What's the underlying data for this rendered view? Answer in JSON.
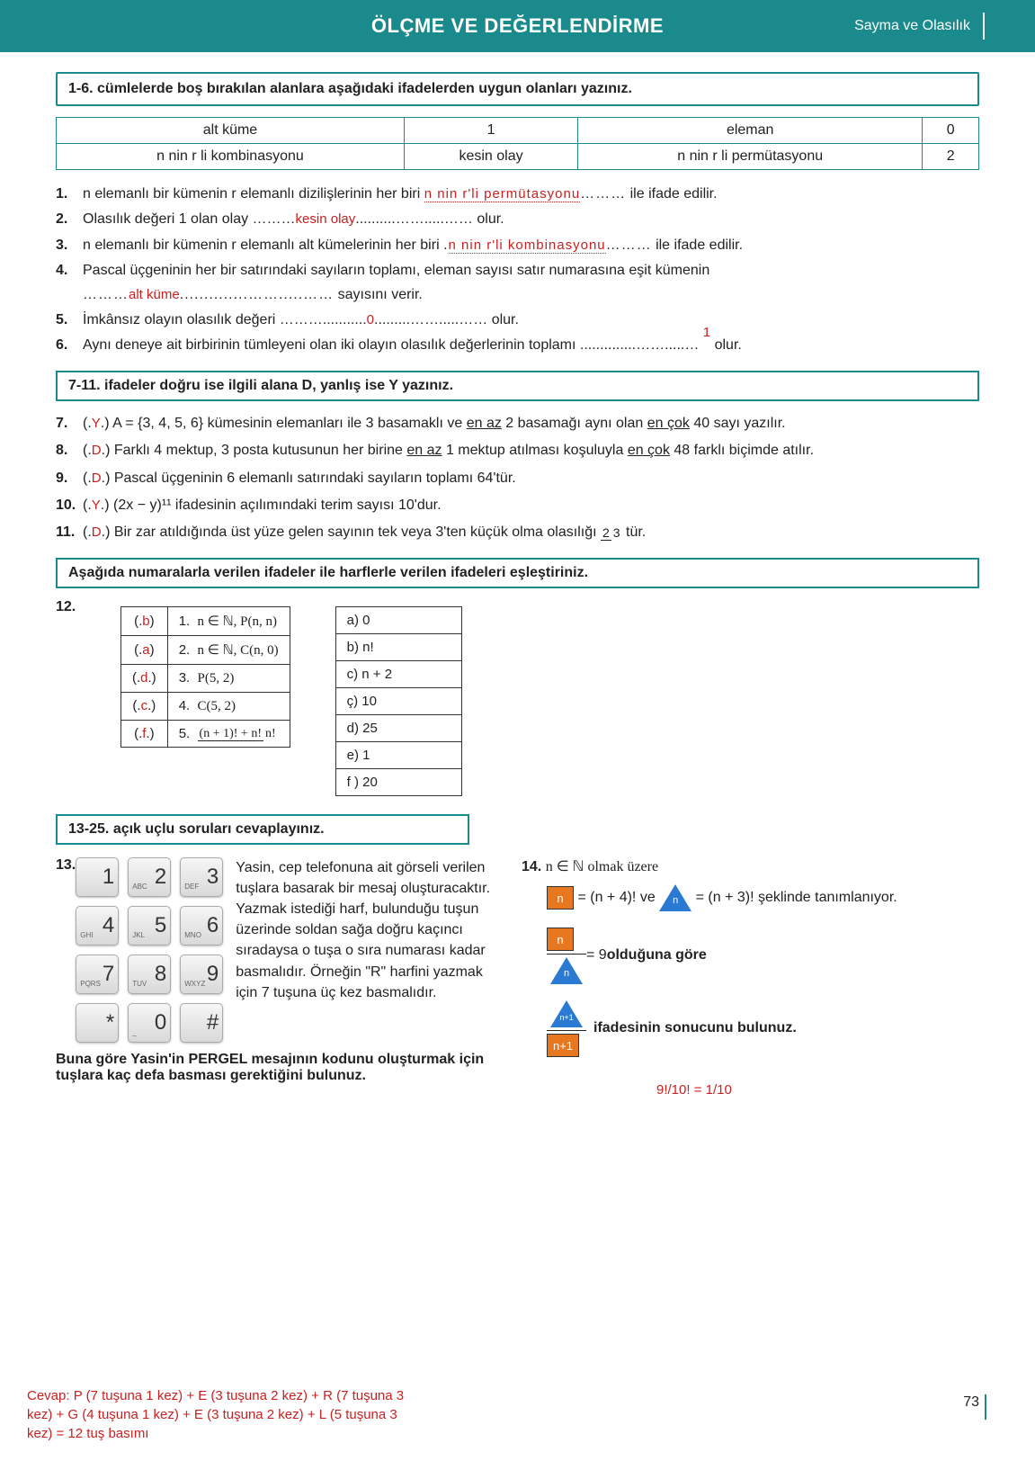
{
  "header": {
    "title": "ÖLÇME VE DEĞERLENDİRME",
    "right": "Sayma ve Olasılık"
  },
  "s1": {
    "instr": "1-6. cümlelerde boş bırakılan alanlara aşağıdaki ifadelerden uygun olanları yazınız.",
    "words": [
      [
        "alt küme",
        "1",
        "eleman",
        "0"
      ],
      [
        "n nin r li kombinasyonu",
        "kesin olay",
        "n nin r li permütasyonu",
        "2"
      ]
    ],
    "q1a": "1.",
    "q1t1": "n elemanlı bir kümenin r elemanlı dizilişlerinin her biri ",
    "q1ans": "n nin r'li permütasyonu",
    "q1t2": " ile ifade edilir.",
    "q2a": "2.",
    "q2t1": "Olasılık değeri 1 olan olay ………",
    "q2ans": "kesin olay",
    "q2t2": "..........…….....…… olur.",
    "q3a": "3.",
    "q3t1": "n elemanlı bir kümenin r elemanlı alt kümelerinin her biri ",
    "q3ans": "n nin r'li kombinasyonu",
    "q3t2": " ile ifade edilir.",
    "q4a": "4.",
    "q4t1": "Pascal üçgeninin her bir satırındaki sayıların toplamı, eleman sayısı satır numarasına eşit kümenin",
    "q4ans": "alt küme",
    "q4t2": " sayısını verir.",
    "q5a": "5.",
    "q5t1": "İmkânsız olayın olasılık değeri ………...........",
    "q5ans": "0",
    "q5t2": ".........…….....…… olur.",
    "q6a": "6.",
    "q6t1": "Aynı deneye ait birbirinin tümleyeni olan iki olayın olasılık değerlerinin toplamı ..............…….....… ",
    "q6ans": "1",
    "q6t2": " olur."
  },
  "s2": {
    "instr": "7-11. ifadeler doğru ise ilgili alana D, yanlış ise Y yazınız.",
    "q7a": "7.",
    "q7ans": "Y",
    "q7t": ") A = {3, 4, 5, 6} kümesinin elemanları ile 3 basamaklı ve ",
    "q7u1": "en az",
    "q7m": " 2 basamağı aynı olan ",
    "q7u2": "en çok",
    "q7e": " 40 sayı yazılır.",
    "q8a": "8.",
    "q8ans": "D",
    "q8t": ") Farklı 4 mektup, 3 posta kutusunun her birine ",
    "q8u1": "en az",
    "q8m": " 1 mektup atılması koşuluyla ",
    "q8u2": "en çok",
    "q8e": " 48 farklı biçimde atılır.",
    "q9a": "9.",
    "q9ans": "D",
    "q9t": ") Pascal üçgeninin 6 elemanlı satırındaki sayıların toplamı 64'tür.",
    "q10a": "10.",
    "q10ans": "Y",
    "q10t": ") (2x − y)¹¹ ifadesinin açılımındaki terim sayısı 10'dur.",
    "q11a": "11.",
    "q11ans": "D",
    "q11t": ") Bir zar atıldığında üst yüze gelen sayının tek veya 3'ten küçük olma olasılığı ",
    "q11f1": "2",
    "q11f2": "3",
    "q11e": " tür."
  },
  "s3": {
    "instr": "Aşağıda numaralarla verilen ifadeler ile harflerle verilen ifadeleri eşleştiriniz.",
    "num": "12.",
    "left": [
      {
        "ans": "b",
        "n": "1.",
        "t": "n ∈ ℕ, P(n, n)"
      },
      {
        "ans": "a",
        "n": "2.",
        "t": "n ∈ ℕ, C(n, 0)"
      },
      {
        "ans": "d",
        "n": "3.",
        "t": "P(5, 2)"
      },
      {
        "ans": "c",
        "n": "4.",
        "t": "C(5, 2)"
      },
      {
        "ans": "f",
        "n": "5.",
        "top": "(n + 1)! + n!",
        "bot": "n!"
      }
    ],
    "right": [
      "a) 0",
      "b) n!",
      "c) n + 2",
      "ç) 10",
      "d) 25",
      "e) 1",
      "f ) 20"
    ]
  },
  "s4": {
    "instr": "13-25. açık uçlu soruları cevaplayınız.",
    "q13n": "13.",
    "keys": [
      {
        "big": "1",
        "sm": ""
      },
      {
        "big": "2",
        "sm": "ABC"
      },
      {
        "big": "3",
        "sm": "DEF"
      },
      {
        "big": "4",
        "sm": "GHI"
      },
      {
        "big": "5",
        "sm": "JKL"
      },
      {
        "big": "6",
        "sm": "MNO"
      },
      {
        "big": "7",
        "sm": "PQRS"
      },
      {
        "big": "8",
        "sm": "TUV"
      },
      {
        "big": "9",
        "sm": "WXYZ"
      },
      {
        "big": "*",
        "sm": ""
      },
      {
        "big": "0",
        "sm": "_"
      },
      {
        "big": "#",
        "sm": ""
      }
    ],
    "q13t": "Yasin, cep telefonuna ait görseli verilen tuşlara basarak bir mesaj oluşturacaktır. Yazmak istediği harf, bulunduğu tuşun üzerinde soldan sağa doğru kaçıncı sıradaysa o tuşa o sıra numarası kadar basmalıdır. Örneğin \"R\" harfini yazmak için 7 tuşuna üç kez basmalıdır.",
    "q13b": "Buna göre Yasin'in PERGEL mesajının kodunu oluşturmak için tuşlara kaç defa basması gerektiğini bulunuz.",
    "q13ans": "Cevap: P (7 tuşuna 1 kez) + E (3 tuşuna 2 kez) + R (7 tuşuna 3 kez) + G (4 tuşuna 1 kez) + E (3 tuşuna 2 kez) + L (5 tuşuna 3 kez) = 12 tuş basımı",
    "q14n": "14.",
    "q14a": "n ∈ ℕ olmak üzere",
    "q14sq": "n",
    "q14b": " = (n + 4)! ve ",
    "q14tri": "n",
    "q14c": " = (n + 3)! şeklinde tanımlanıyor.",
    "q14d": " = 9 ",
    "q14bold": "olduğuna göre",
    "q14e": " ifadesinin sonucunu bulunuz.",
    "q14ans": "9!/10! = 1/10"
  },
  "pageNum": "73"
}
